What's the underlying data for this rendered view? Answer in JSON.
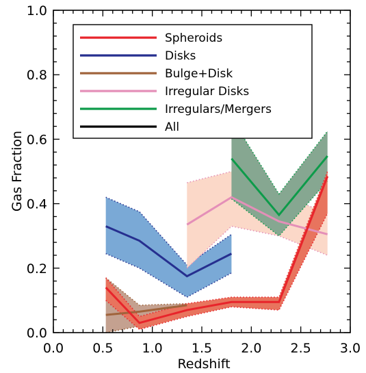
{
  "chart_data": {
    "type": "line",
    "title": "",
    "xlabel": "Redshift",
    "ylabel": "Gas Fraction",
    "xlim": [
      0.0,
      3.0
    ],
    "ylim": [
      0.0,
      1.0
    ],
    "xticks": [
      "0.0",
      "0.5",
      "1.0",
      "1.5",
      "2.0",
      "2.5",
      "3.0"
    ],
    "yticks": [
      "0.0",
      "0.2",
      "0.4",
      "0.6",
      "0.8",
      "1.0"
    ],
    "xtick_values": [
      0.0,
      0.5,
      1.0,
      1.5,
      2.0,
      2.5,
      3.0
    ],
    "ytick_values": [
      0.0,
      0.2,
      0.4,
      0.6,
      0.8,
      1.0
    ],
    "legend_position": "top-left",
    "series": [
      {
        "name": "Spheroids",
        "color": "#e8242b",
        "band_color": "#e8745e",
        "x": [
          0.53,
          0.87,
          1.35,
          1.8,
          2.28,
          2.77
        ],
        "y": [
          0.14,
          0.03,
          0.07,
          0.095,
          0.095,
          0.485
        ],
        "upper": [
          0.17,
          0.05,
          0.09,
          0.11,
          0.11,
          0.5
        ],
        "lower": [
          0.1,
          0.01,
          0.05,
          0.08,
          0.07,
          0.37
        ]
      },
      {
        "name": "Disks",
        "color": "#262f8f",
        "band_color": "#7aa9d6",
        "x": [
          0.53,
          0.87,
          1.35,
          1.8
        ],
        "y": [
          0.33,
          0.285,
          0.175,
          0.245
        ],
        "upper": [
          0.42,
          0.375,
          0.21,
          0.305
        ],
        "lower": [
          0.245,
          0.2,
          0.11,
          0.185
        ]
      },
      {
        "name": "Bulge+Disk",
        "color": "#a0643c",
        "band_color": "#c4a190",
        "x": [
          0.53,
          0.87,
          1.35
        ],
        "y": [
          0.055,
          0.065,
          0.085
        ],
        "upper": [
          0.17,
          0.085,
          0.09
        ],
        "lower": [
          0.0,
          0.02,
          0.075
        ]
      },
      {
        "name": "Irregular Disks",
        "color": "#e48fb8",
        "band_color": "#fbd8c8",
        "x": [
          1.35,
          1.8,
          2.28,
          2.77
        ],
        "y": [
          0.335,
          0.42,
          0.345,
          0.305
        ],
        "upper": [
          0.465,
          0.5,
          0.43,
          0.37
        ],
        "lower": [
          0.2,
          0.33,
          0.3,
          0.24
        ]
      },
      {
        "name": "Irregulars/Mergers",
        "color": "#0d9b4a",
        "band_color": "#86a791",
        "x": [
          1.8,
          2.28,
          2.77
        ],
        "y": [
          0.54,
          0.365,
          0.548
        ],
        "upper": [
          0.665,
          0.43,
          0.625
        ],
        "lower": [
          0.415,
          0.3,
          0.47
        ]
      },
      {
        "name": "All",
        "color": "#000000",
        "band_color": "",
        "x": [],
        "y": [],
        "upper": [],
        "lower": []
      }
    ]
  }
}
